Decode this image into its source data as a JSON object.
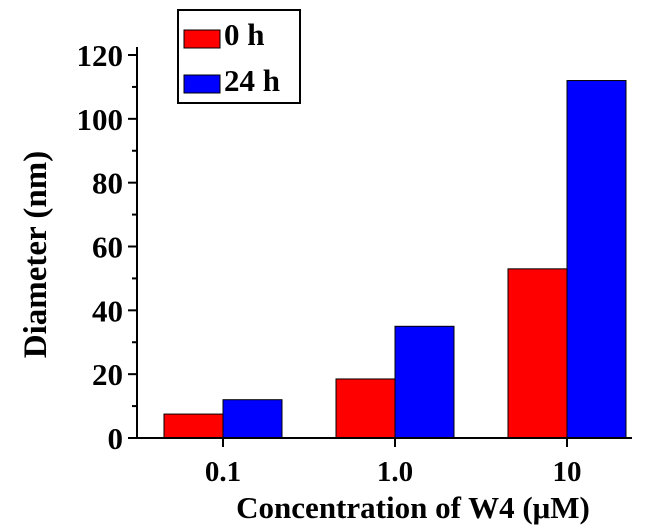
{
  "chart_data": {
    "type": "bar",
    "title": "",
    "xlabel": "Concentration of W4 (μM)",
    "ylabel": "Diameter (nm)",
    "categories": [
      "0.1",
      "1.0",
      "10"
    ],
    "series": [
      {
        "name": "0 h",
        "values": [
          7.5,
          18.5,
          53
        ],
        "color": "#ff0000"
      },
      {
        "name": "24 h",
        "values": [
          12,
          35,
          112
        ],
        "color": "#0000ff"
      }
    ],
    "ylim": [
      0,
      120
    ],
    "y_ticks": [
      0,
      20,
      40,
      60,
      80,
      100,
      120
    ],
    "y_minor_step": 10,
    "grid": false,
    "legend_position": "top-left"
  }
}
